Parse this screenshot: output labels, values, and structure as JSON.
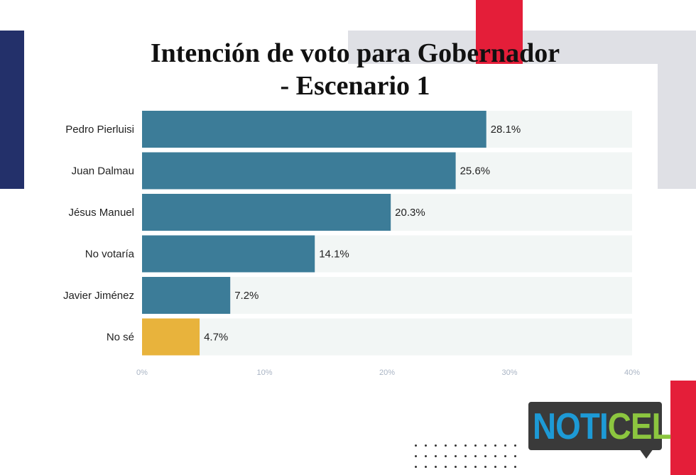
{
  "chart_data": {
    "type": "bar",
    "orientation": "horizontal",
    "title": "Intención de voto para Gobernador - Escenario 1",
    "title_lines": [
      "Intención de voto para Gobernador",
      "- Escenario 1"
    ],
    "categories": [
      "Pedro Pierluisi",
      "Juan Dalmau",
      "Jésus Manuel",
      "No votaría",
      "Javier Jiménez",
      "No sé"
    ],
    "values": [
      28.1,
      25.6,
      20.3,
      14.1,
      7.2,
      4.7
    ],
    "value_labels": [
      "28.1%",
      "25.6%",
      "20.3%",
      "14.1%",
      "7.2%",
      "4.7%"
    ],
    "colors": [
      "#3c7c98",
      "#3c7c98",
      "#3c7c98",
      "#3c7c98",
      "#3c7c98",
      "#e8b33c"
    ],
    "track_color": "#f2f6f5",
    "xlim": [
      0,
      40
    ],
    "x_ticks": [
      0,
      10,
      20,
      30,
      40
    ],
    "x_tick_labels": [
      "0%",
      "10%",
      "20%",
      "30%",
      "40%"
    ],
    "xlabel": "",
    "ylabel": "",
    "grid": false
  },
  "logo": {
    "text_part1": "NOTI",
    "text_part2": "CEL"
  },
  "decor": {
    "navy": "#23306a",
    "red": "#e41e39",
    "gray": "#dfe0e5"
  }
}
